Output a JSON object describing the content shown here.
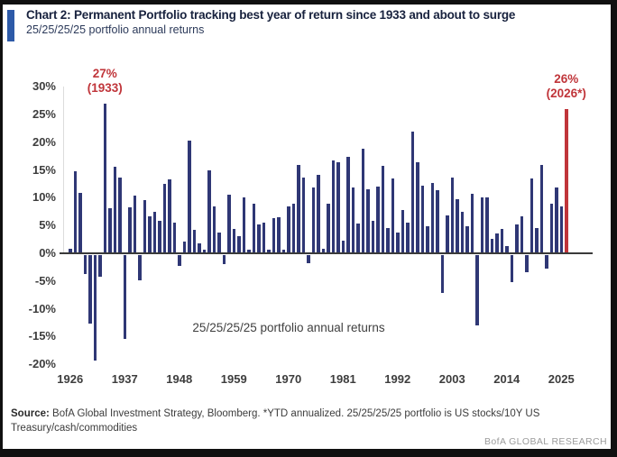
{
  "header": {
    "title": "Chart 2: Permanent Portfolio tracking best year of return since 1933 and about to surge",
    "subtitle": "25/25/25/25 portfolio annual returns",
    "accent_color": "#2d5aa8"
  },
  "chart_data": {
    "type": "bar",
    "title": "25/25/25/25 portfolio annual returns",
    "start_year": 1926,
    "end_year": 2026,
    "values": [
      0.8,
      14.8,
      10.8,
      -3.4,
      -12.4,
      -19.0,
      -3.9,
      27.0,
      8.1,
      15.6,
      13.6,
      -15.1,
      8.2,
      10.4,
      -4.5,
      9.6,
      6.7,
      7.5,
      5.8,
      12.5,
      13.3,
      5.6,
      -1.9,
      2.1,
      20.3,
      4.3,
      1.8,
      0.7,
      15.0,
      8.4,
      3.7,
      -1.7,
      10.5,
      4.4,
      3.1,
      10.0,
      0.7,
      9.0,
      5.2,
      5.6,
      0.7,
      6.4,
      6.5,
      0.6,
      8.5,
      8.9,
      15.9,
      13.7,
      -1.5,
      11.8,
      14.1,
      0.8,
      8.9,
      16.8,
      16.4,
      2.2,
      17.3,
      11.9,
      5.4,
      18.8,
      11.5,
      5.9,
      12.0,
      15.8,
      4.5,
      13.5,
      3.8,
      7.8,
      5.5,
      21.9,
      16.4,
      12.1,
      4.8,
      12.6,
      11.4,
      -6.8,
      6.8,
      13.7,
      9.7,
      7.4,
      4.8,
      10.7,
      -12.7,
      10.1,
      10.0,
      2.6,
      3.6,
      4.4,
      1.3,
      -4.8,
      5.2,
      6.6,
      -3.1,
      13.5,
      4.6,
      15.9,
      -2.5,
      8.9,
      11.9,
      8.4,
      26.0
    ],
    "highlight_index": 100,
    "x_ticks": [
      1926,
      1937,
      1948,
      1959,
      1970,
      1981,
      1992,
      2003,
      2014,
      2025
    ],
    "y_tick_labels": [
      "30%",
      "25%",
      "20%",
      "15%",
      "10%",
      "5%",
      "0%",
      "-5%",
      "-10%",
      "-15%",
      "-20%"
    ],
    "ylim": [
      -20,
      30
    ],
    "grid": false,
    "legend": false,
    "inner_label": "25/25/25/25 portfolio annual returns",
    "annotations": [
      {
        "year": 1933,
        "lines": [
          "27%",
          "(1933)"
        ]
      },
      {
        "year": 2026,
        "lines": [
          "26%",
          "(2026*)"
        ]
      }
    ],
    "colors": {
      "bar": "#2f3775",
      "highlight": "#c0353a",
      "annotation_text": "#c0353a",
      "axis_line": "#3a3a3a"
    }
  },
  "footer": {
    "source_label": "Source:",
    "source_text": " BofA Global Investment Strategy, Bloomberg. *YTD annualized. 25/25/25/25 portfolio is US stocks/10Y US Treasury/cash/commodities",
    "brand": "BofA GLOBAL RESEARCH"
  }
}
